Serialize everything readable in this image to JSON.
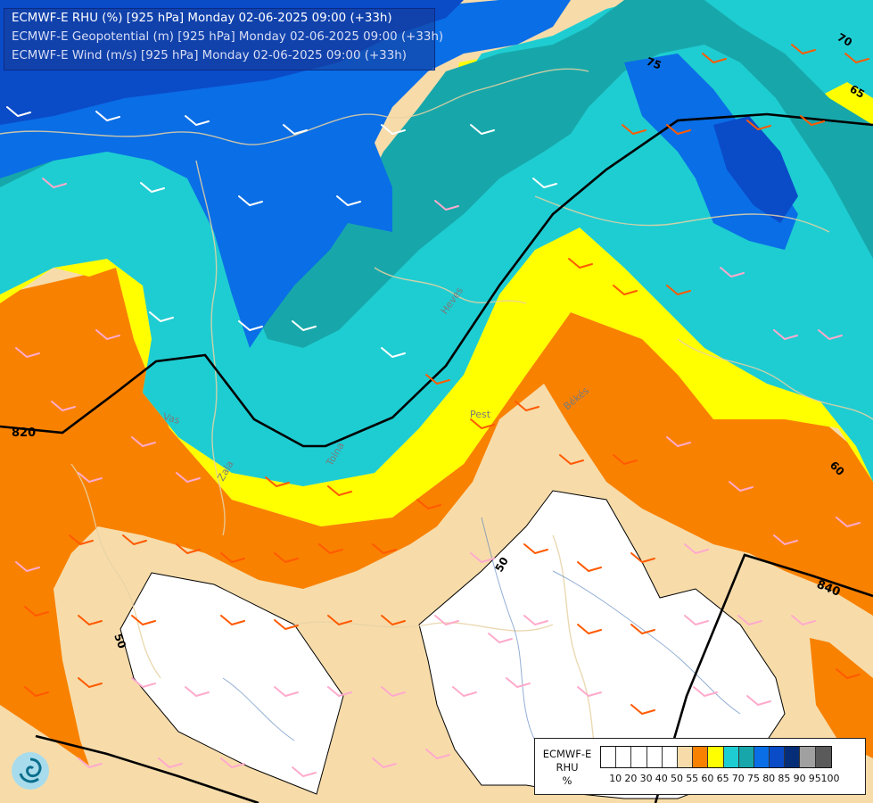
{
  "title_lines": [
    "ECMWF-E RHU (%) [925 hPa] Monday 02-06-2025 09:00 (+33h)",
    "ECMWF-E Geopotential (m) [925 hPa] Monday 02-06-2025 09:00 (+33h)",
    "ECMWF-E Wind (m/s) [925 hPa] Monday 02-06-2025 09:00 (+33h)"
  ],
  "legend": {
    "label_lines": [
      "ECMWF-E",
      "RHU",
      "%"
    ],
    "ticks": [
      "10",
      "20",
      "30",
      "40",
      "50",
      "55",
      "60",
      "65",
      "70",
      "75",
      "80",
      "85",
      "90",
      "95",
      "100"
    ],
    "colors": [
      "#ffffff",
      "#ffffff",
      "#ffffff",
      "#ffffff",
      "#ffffff",
      "#f7dcaa",
      "#f98100",
      "#ffff00",
      "#1ecdd2",
      "#17a7aa",
      "#0a6ee6",
      "#0a4bc8",
      "#062e78",
      "#a0a0a0",
      "#5a5a5a"
    ]
  },
  "map_labels": {
    "contours": [
      "820",
      "840",
      "50",
      "50",
      "60",
      "65",
      "70",
      "75"
    ],
    "places": [
      "Pest",
      "Heves",
      "Békés",
      "Vas",
      "Zala",
      "Tolna"
    ]
  },
  "colors": {
    "rh_50": "#ffffff",
    "rh_55": "#f7dcaa",
    "rh_60": "#f98100",
    "rh_65": "#ffff00",
    "rh_70": "#1ecdd2",
    "rh_75": "#17a7aa",
    "rh_80": "#0a6ee6",
    "rh_85": "#0a4bc8",
    "wind_orange": "#ff5a00",
    "wind_pink": "#ffaacc",
    "wind_white": "#ffffff",
    "geopotential_line": "#000000",
    "border_line": "#e8d2a4"
  }
}
